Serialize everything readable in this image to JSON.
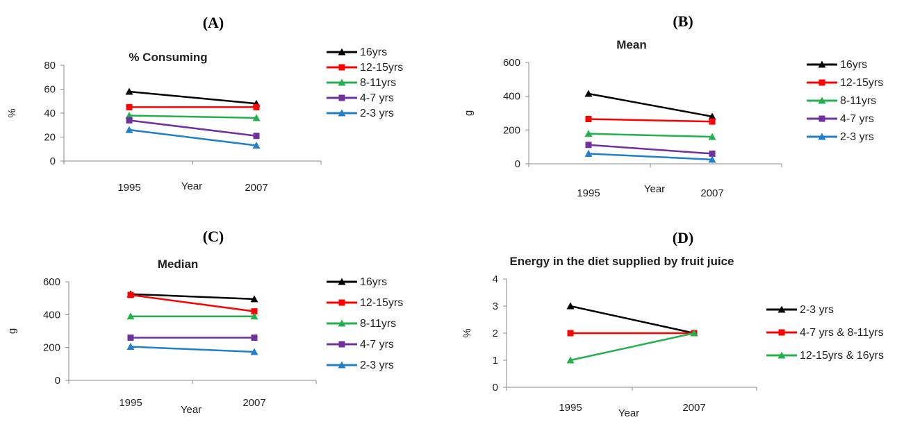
{
  "chart_data": [
    {
      "panel_label": "(A)",
      "type": "line",
      "title": "% Consuming",
      "xlabel": "Year",
      "ylabel": "%",
      "x": [
        "1995",
        "2007"
      ],
      "ylim": [
        0,
        80
      ],
      "yticks": [
        0,
        20,
        40,
        60,
        80
      ],
      "series": [
        {
          "name": "16yrs",
          "color": "#000000",
          "marker": "triangle",
          "values": [
            58,
            48
          ]
        },
        {
          "name": "12-15yrs",
          "color": "#ff0000",
          "marker": "square",
          "values": [
            45,
            45
          ]
        },
        {
          "name": "8-11yrs",
          "color": "#22b14c",
          "marker": "triangle",
          "values": [
            38,
            36
          ]
        },
        {
          "name": "4-7 yrs",
          "color": "#7030a0",
          "marker": "square",
          "values": [
            34,
            21
          ]
        },
        {
          "name": "2-3 yrs",
          "color": "#1f7fc8",
          "marker": "triangle",
          "values": [
            26,
            13
          ]
        }
      ],
      "legend": "right"
    },
    {
      "panel_label": "(B)",
      "type": "line",
      "title": "Mean",
      "xlabel": "Year",
      "ylabel": "g",
      "x": [
        "1995",
        "2007"
      ],
      "ylim": [
        0,
        600
      ],
      "yticks": [
        0,
        200,
        400,
        600
      ],
      "series": [
        {
          "name": "16yrs",
          "color": "#000000",
          "marker": "triangle",
          "values": [
            415,
            280
          ]
        },
        {
          "name": "12-15yrs",
          "color": "#ff0000",
          "marker": "square",
          "values": [
            265,
            250
          ]
        },
        {
          "name": "8-11yrs",
          "color": "#22b14c",
          "marker": "triangle",
          "values": [
            178,
            160
          ]
        },
        {
          "name": "4-7 yrs",
          "color": "#7030a0",
          "marker": "square",
          "values": [
            112,
            60
          ]
        },
        {
          "name": "2-3 yrs",
          "color": "#1f7fc8",
          "marker": "triangle",
          "values": [
            60,
            25
          ]
        }
      ],
      "legend": "right"
    },
    {
      "panel_label": "(C)",
      "type": "line",
      "title": "Median",
      "xlabel": "Year",
      "ylabel": "g",
      "x": [
        "1995",
        "2007"
      ],
      "ylim": [
        0,
        600
      ],
      "yticks": [
        0,
        200,
        400,
        600
      ],
      "series": [
        {
          "name": "16yrs",
          "color": "#000000",
          "marker": "triangle",
          "values": [
            525,
            495
          ]
        },
        {
          "name": "12-15yrs",
          "color": "#ff0000",
          "marker": "square",
          "values": [
            520,
            420
          ]
        },
        {
          "name": "8-11yrs",
          "color": "#22b14c",
          "marker": "triangle",
          "values": [
            390,
            390
          ]
        },
        {
          "name": "4-7 yrs",
          "color": "#7030a0",
          "marker": "square",
          "values": [
            260,
            260
          ]
        },
        {
          "name": "2-3 yrs",
          "color": "#1f7fc8",
          "marker": "triangle",
          "values": [
            205,
            173
          ]
        }
      ],
      "legend": "right"
    },
    {
      "panel_label": "(D)",
      "type": "line",
      "title": "Energy in the diet supplied by fruit juice",
      "xlabel": "Year",
      "ylabel": "%",
      "x": [
        "1995",
        "2007"
      ],
      "ylim": [
        0,
        4
      ],
      "yticks": [
        0,
        1,
        2,
        3,
        4
      ],
      "series": [
        {
          "name": "2-3 yrs",
          "color": "#000000",
          "marker": "triangle",
          "values": [
            3,
            2
          ]
        },
        {
          "name": "4-7 yrs & 8-11yrs",
          "color": "#ff0000",
          "marker": "square",
          "values": [
            2,
            2
          ]
        },
        {
          "name": "12-15yrs & 16yrs",
          "color": "#22b14c",
          "marker": "triangle",
          "values": [
            1,
            2
          ]
        }
      ],
      "legend": "right"
    }
  ]
}
